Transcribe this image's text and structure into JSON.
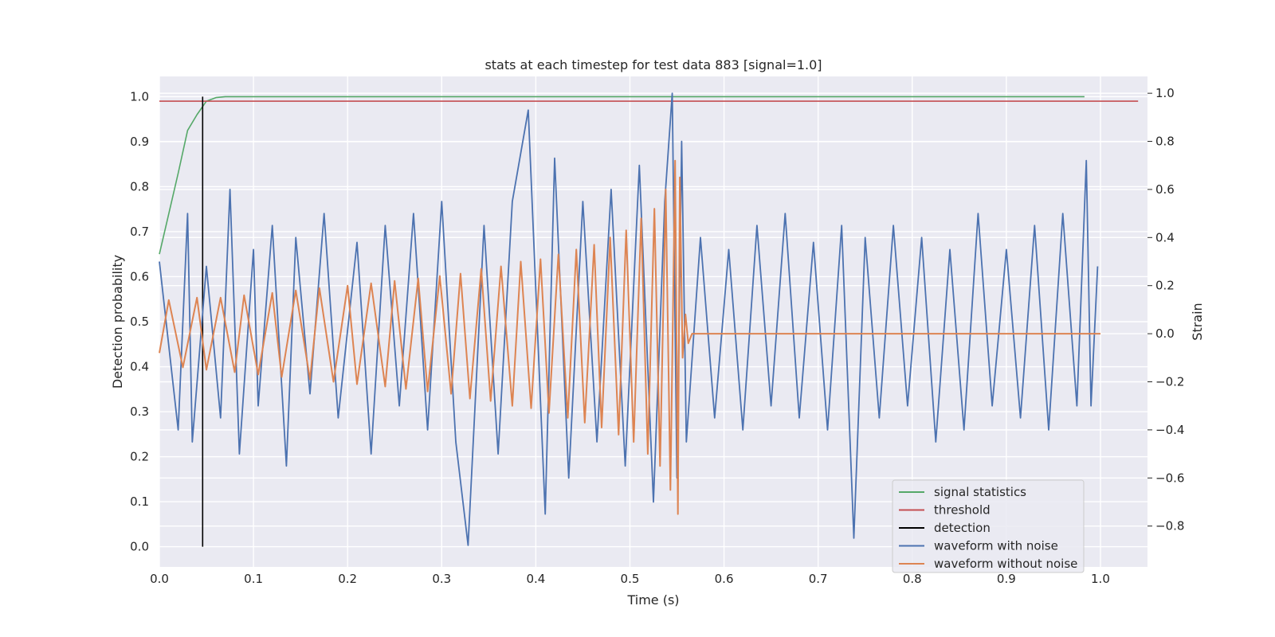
{
  "chart_data": {
    "type": "line",
    "title": "stats at each timestep for test data 883 [signal=1.0]",
    "xlabel": "Time (s)",
    "ylabel": "Detection probability",
    "y2label": "Strain",
    "xlim": [
      0.0,
      1.05
    ],
    "ylim": [
      -0.045,
      1.045
    ],
    "y2lim": [
      -0.97,
      1.07
    ],
    "xticks": [
      "0.0",
      "0.1",
      "0.2",
      "0.3",
      "0.4",
      "0.5",
      "0.6",
      "0.7",
      "0.8",
      "0.9",
      "1.0"
    ],
    "yticks": [
      "0.0",
      "0.1",
      "0.2",
      "0.3",
      "0.4",
      "0.5",
      "0.6",
      "0.7",
      "0.8",
      "0.9",
      "1.0"
    ],
    "y2ticks": [
      "−0.8",
      "−0.6",
      "−0.4",
      "−0.2",
      "0.0",
      "0.2",
      "0.4",
      "0.6",
      "0.8",
      "1.0"
    ],
    "grid": true,
    "legend_position": "bottom-right",
    "legend": [
      {
        "label": "signal statistics",
        "color": "#55a868"
      },
      {
        "label": "threshold",
        "color": "#c44e52"
      },
      {
        "label": "detection",
        "color": "#000000"
      },
      {
        "label": "waveform with noise",
        "color": "#4c72b0"
      },
      {
        "label": "waveform without noise",
        "color": "#dd8452"
      }
    ],
    "colors": {
      "plot_background": "#eaeaf2",
      "grid": "#ffffff",
      "signal_statistics": "#55a868",
      "threshold": "#c44e52",
      "detection": "#000000",
      "waveform_with_noise": "#4c72b0",
      "waveform_without_noise": "#dd8452"
    },
    "series": [
      {
        "name": "signal statistics",
        "axis": "left",
        "x": [
          0.0,
          0.01,
          0.02,
          0.03,
          0.04,
          0.05,
          0.06,
          0.07,
          0.1,
          0.3,
          0.5,
          0.7,
          0.9,
          0.983
        ],
        "y": [
          0.65,
          0.74,
          0.83,
          0.925,
          0.96,
          0.99,
          0.998,
          1.0,
          1.0,
          1.0,
          1.0,
          1.0,
          1.0,
          1.0
        ]
      },
      {
        "name": "threshold",
        "axis": "left",
        "x": [
          0.0,
          1.04
        ],
        "y": [
          0.99,
          0.99
        ]
      },
      {
        "name": "detection",
        "axis": "left",
        "x": [
          0.046,
          0.046
        ],
        "y": [
          0.0,
          1.0
        ]
      },
      {
        "name": "waveform with noise",
        "axis": "right",
        "x": [
          0.0,
          0.02,
          0.03,
          0.035,
          0.05,
          0.065,
          0.075,
          0.085,
          0.1,
          0.105,
          0.12,
          0.135,
          0.145,
          0.16,
          0.175,
          0.19,
          0.21,
          0.225,
          0.24,
          0.255,
          0.27,
          0.285,
          0.3,
          0.315,
          0.328,
          0.345,
          0.36,
          0.375,
          0.392,
          0.41,
          0.42,
          0.435,
          0.45,
          0.465,
          0.48,
          0.495,
          0.51,
          0.525,
          0.537,
          0.545,
          0.55,
          0.555,
          0.56,
          0.575,
          0.59,
          0.605,
          0.62,
          0.635,
          0.65,
          0.665,
          0.68,
          0.695,
          0.71,
          0.725,
          0.738,
          0.75,
          0.765,
          0.78,
          0.795,
          0.81,
          0.825,
          0.84,
          0.855,
          0.87,
          0.885,
          0.9,
          0.915,
          0.93,
          0.945,
          0.96,
          0.975,
          0.985,
          0.99,
          0.997
        ],
        "y": [
          0.3,
          -0.4,
          0.5,
          -0.45,
          0.28,
          -0.35,
          0.6,
          -0.5,
          0.35,
          -0.3,
          0.45,
          -0.55,
          0.4,
          -0.25,
          0.5,
          -0.35,
          0.38,
          -0.5,
          0.45,
          -0.3,
          0.5,
          -0.4,
          0.55,
          -0.45,
          -0.88,
          0.45,
          -0.5,
          0.55,
          0.93,
          -0.75,
          0.73,
          -0.6,
          0.55,
          -0.45,
          0.6,
          -0.55,
          0.7,
          -0.7,
          0.55,
          1.0,
          -0.6,
          0.8,
          -0.45,
          0.4,
          -0.35,
          0.35,
          -0.4,
          0.45,
          -0.3,
          0.5,
          -0.35,
          0.38,
          -0.4,
          0.45,
          -0.85,
          0.4,
          -0.35,
          0.45,
          -0.3,
          0.4,
          -0.45,
          0.35,
          -0.4,
          0.5,
          -0.3,
          0.35,
          -0.35,
          0.45,
          -0.4,
          0.5,
          -0.3,
          0.72,
          -0.3,
          0.28
        ]
      },
      {
        "name": "waveform without noise",
        "axis": "right",
        "x": [
          0.0,
          0.01,
          0.025,
          0.04,
          0.05,
          0.065,
          0.08,
          0.09,
          0.105,
          0.12,
          0.13,
          0.145,
          0.16,
          0.17,
          0.185,
          0.2,
          0.21,
          0.225,
          0.24,
          0.25,
          0.262,
          0.275,
          0.285,
          0.298,
          0.31,
          0.32,
          0.33,
          0.342,
          0.352,
          0.363,
          0.375,
          0.384,
          0.395,
          0.405,
          0.414,
          0.424,
          0.434,
          0.443,
          0.452,
          0.462,
          0.47,
          0.479,
          0.488,
          0.496,
          0.504,
          0.512,
          0.519,
          0.526,
          0.532,
          0.538,
          0.543,
          0.548,
          0.551,
          0.553,
          0.556,
          0.559,
          0.562,
          0.566,
          0.58,
          0.7,
          0.85,
          1.0
        ],
        "y": [
          -0.08,
          0.14,
          -0.14,
          0.15,
          -0.15,
          0.15,
          -0.16,
          0.16,
          -0.17,
          0.17,
          -0.18,
          0.18,
          -0.19,
          0.19,
          -0.2,
          0.2,
          -0.21,
          0.21,
          -0.22,
          0.22,
          -0.23,
          0.23,
          -0.24,
          0.24,
          -0.25,
          0.25,
          -0.27,
          0.27,
          -0.28,
          0.28,
          -0.3,
          0.3,
          -0.31,
          0.31,
          -0.33,
          0.33,
          -0.35,
          0.35,
          -0.37,
          0.37,
          -0.39,
          0.4,
          -0.42,
          0.43,
          -0.45,
          0.48,
          -0.5,
          0.52,
          -0.55,
          0.6,
          -0.65,
          0.72,
          -0.75,
          0.65,
          -0.1,
          0.08,
          -0.04,
          0.0,
          0.0,
          0.0,
          0.0,
          0.0
        ]
      }
    ]
  }
}
